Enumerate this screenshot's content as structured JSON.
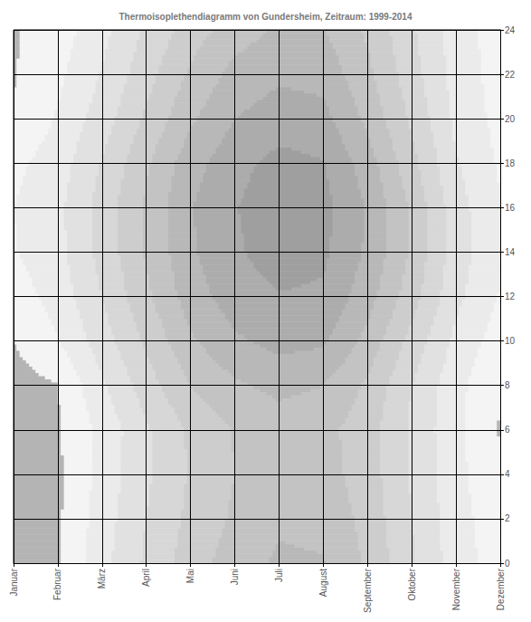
{
  "chart_data": {
    "type": "contour",
    "title": "Thermoisoplethendiagramm von Gundersheim, Zeitraum: 1999-2014",
    "categories": [
      "Januar",
      "Februar",
      "März",
      "April",
      "Mai",
      "Juni",
      "Juli",
      "August",
      "September",
      "Oktober",
      "November",
      "Dezember"
    ],
    "y": [
      0,
      2,
      4,
      6,
      8,
      10,
      12,
      14,
      16,
      18,
      20,
      22,
      24
    ],
    "values": [
      [
        -0.3,
        -0.8,
        -1.2,
        -1.5,
        -1.2,
        0,
        1.5,
        2.8,
        3,
        2.2,
        0.2,
        -0.2,
        -0.3
      ],
      [
        -0.2,
        -0.5,
        -0.6,
        -0.3,
        -0.1,
        2.8,
        4.2,
        5,
        5.2,
        4.5,
        3.3,
        2.3,
        1.5
      ],
      [
        5,
        4.5,
        4,
        3.8,
        5.5,
        7.5,
        9,
        10,
        10.2,
        9.2,
        7.5,
        6.2,
        5
      ],
      [
        9.5,
        9,
        8.5,
        8.5,
        10.5,
        12.5,
        14.3,
        15.3,
        15.5,
        14.5,
        12.5,
        10.8,
        9.5
      ],
      [
        13.5,
        12.8,
        12.3,
        12.5,
        15,
        17.5,
        19.5,
        20.5,
        20.8,
        19.8,
        17.5,
        15.5,
        13.5
      ],
      [
        16.5,
        15.5,
        15,
        15.2,
        17.5,
        20.5,
        22.5,
        23.5,
        23.8,
        23,
        21,
        19,
        16.5
      ],
      [
        18.5,
        17.5,
        16.5,
        16.5,
        18.8,
        22,
        23.8,
        25.5,
        26,
        25,
        22.5,
        20.5,
        18.5
      ],
      [
        18.2,
        17.2,
        16.3,
        16,
        18,
        21.5,
        23.5,
        24.6,
        25,
        24.2,
        22,
        20,
        18.2
      ],
      [
        14.5,
        14,
        13.5,
        13.3,
        14.5,
        17,
        19.3,
        20.5,
        20.8,
        19.5,
        17.3,
        15.8,
        14.5
      ],
      [
        9.5,
        9,
        8.7,
        8.5,
        9,
        11,
        13.3,
        14.5,
        14.5,
        13,
        11.5,
        10.3,
        9.5
      ],
      [
        4.5,
        4.2,
        4,
        3.8,
        4,
        5.2,
        6.8,
        7.5,
        7.3,
        6.3,
        5.3,
        4.8,
        4.5
      ],
      [
        1.5,
        1.2,
        0.3,
        -0.2,
        0.1,
        1.5,
        2.8,
        3.5,
        3.2,
        2.6,
        2,
        1.7,
        1.5
      ]
    ],
    "levels": [
      0,
      3,
      6,
      9,
      12,
      15,
      18,
      21,
      24
    ],
    "colors": [
      "#b4b4b4",
      "#f4f4f4",
      "#ebebeb",
      "#e1e1e1",
      "#d7d7d7",
      "#cdcdcd",
      "#c3c3c3",
      "#b8b8b8",
      "#acacac",
      "#9f9f9f"
    ],
    "ylim": [
      0,
      24
    ],
    "yticks": [
      0,
      2,
      4,
      6,
      8,
      10,
      12,
      14,
      16,
      18,
      20,
      22,
      24
    ],
    "grid": true
  }
}
